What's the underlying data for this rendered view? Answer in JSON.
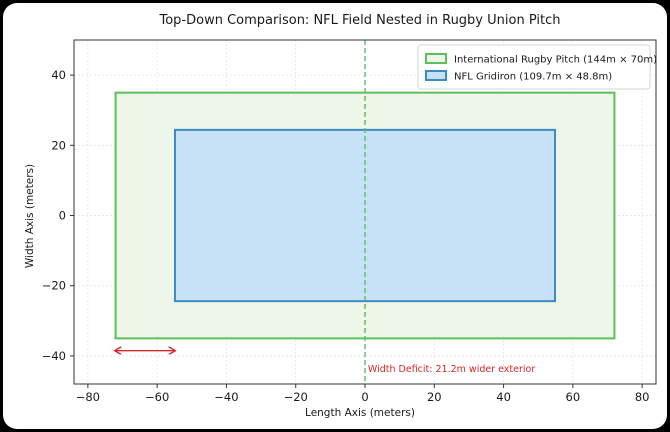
{
  "chart_data": {
    "type": "rectangle-comparison",
    "title": "Top-Down Comparison: NFL Field Nested in Rugby Union Pitch",
    "xlabel": "Length Axis (meters)",
    "ylabel": "Width Axis (meters)",
    "xlim": [
      -84,
      84
    ],
    "ylim": [
      -48,
      50
    ],
    "xticks": [
      -80,
      -60,
      -40,
      -20,
      0,
      20,
      40,
      60,
      80
    ],
    "yticks": [
      -40,
      -20,
      0,
      20,
      40
    ],
    "xtick_labels": [
      "−80",
      "−60",
      "−40",
      "−20",
      "0",
      "20",
      "40",
      "60",
      "80"
    ],
    "ytick_labels": [
      "−40",
      "−20",
      "0",
      "20",
      "40"
    ],
    "grid": true,
    "legend_position": "top-right",
    "series": [
      {
        "name": "International Rugby Pitch (144m × 70m)",
        "x_range": [
          -72,
          72
        ],
        "y_range": [
          -35,
          35
        ],
        "edge_color": "#5cbf5c",
        "fill_color": "#eef6ea"
      },
      {
        "name": "NFL Gridiron (109.7m × 48.8m)",
        "x_range": [
          -54.85,
          54.85
        ],
        "y_range": [
          -24.4,
          24.4
        ],
        "edge_color": "#3b8bc2",
        "fill_color": "#c7e2f7"
      }
    ],
    "center_line": {
      "x": 0,
      "color": "#5cbf5c",
      "style": "dashed"
    },
    "annotations": [
      {
        "text": "Width Deficit: 21.2m wider exterior",
        "x": 25,
        "y": -43.5,
        "color": "#d62728"
      },
      {
        "arrow": "double-headed",
        "x_range": [
          -72,
          -55
        ],
        "y": -38.5,
        "color": "#d62728"
      }
    ]
  }
}
